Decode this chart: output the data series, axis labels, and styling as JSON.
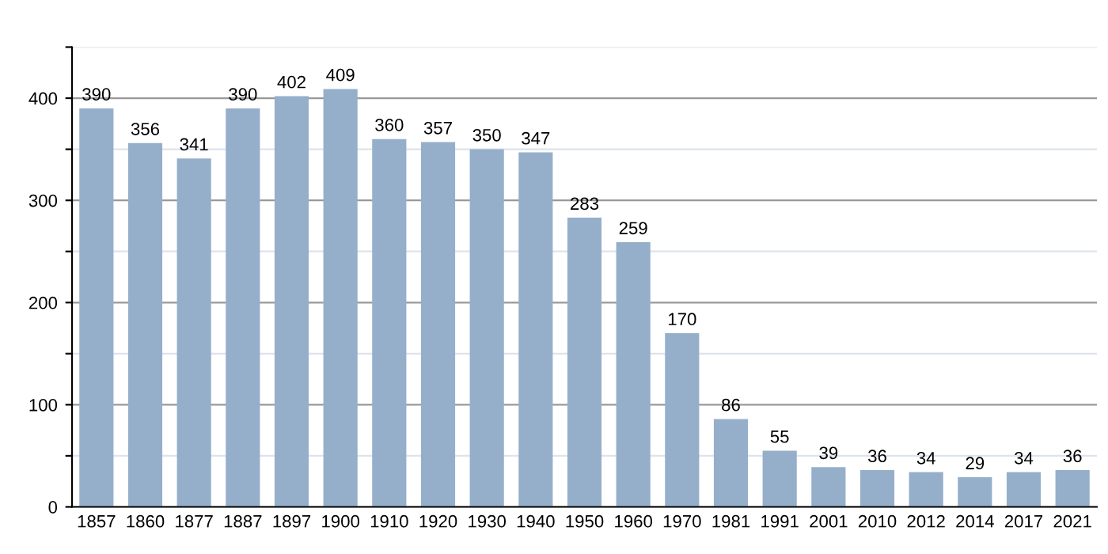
{
  "chart_data": {
    "type": "bar",
    "categories": [
      "1857",
      "1860",
      "1877",
      "1887",
      "1897",
      "1900",
      "1910",
      "1920",
      "1930",
      "1940",
      "1950",
      "1960",
      "1970",
      "1981",
      "1991",
      "2001",
      "2010",
      "2012",
      "2014",
      "2017",
      "2021"
    ],
    "values": [
      390,
      356,
      341,
      390,
      402,
      409,
      360,
      357,
      350,
      347,
      283,
      259,
      170,
      86,
      55,
      39,
      36,
      34,
      29,
      34,
      36
    ],
    "color": "#95afcb",
    "ylim": [
      0,
      450
    ],
    "yticks": [
      0,
      {
        "value": 50,
        "label": null
      },
      100,
      {
        "value": 150,
        "label": null
      },
      200,
      {
        "value": 250,
        "label": null
      },
      300,
      {
        "value": 350,
        "label": null
      },
      400,
      {
        "value": 450,
        "label": null
      }
    ],
    "grid": "y",
    "data_labels": true
  }
}
